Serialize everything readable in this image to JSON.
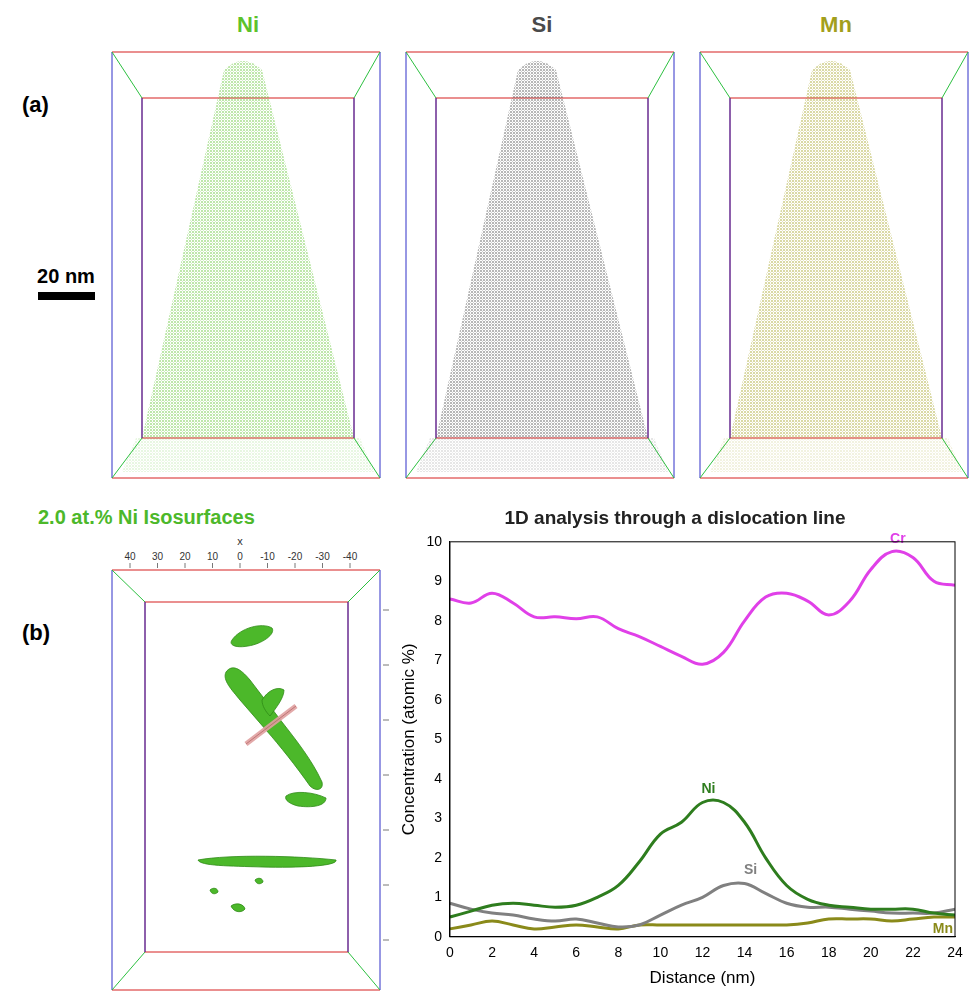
{
  "panels": {
    "a": {
      "label": "(a)",
      "scale_bar": "20 nm",
      "maps": [
        {
          "title": "Ni",
          "color": "#5cc22c"
        },
        {
          "title": "Si",
          "color": "#4a4a4a"
        },
        {
          "title": "Mn",
          "color": "#a39f1c"
        }
      ]
    },
    "b": {
      "label": "(b)",
      "isosurface": {
        "title": "2.0 at.% Ni Isosurfaces",
        "color": "#4cb82a",
        "axis_label": "x",
        "ticks": [
          40,
          30,
          20,
          10,
          0,
          -10,
          -20,
          -30,
          -40
        ]
      }
    }
  },
  "chart_data": {
    "type": "line",
    "title": "1D analysis through a dislocation line",
    "x_label": "Distance (nm)",
    "y_label": "Concentration (atomic %)",
    "x": [
      0,
      1,
      2,
      3,
      4,
      5,
      6,
      7,
      8,
      9,
      10,
      11,
      12,
      13,
      14,
      15,
      16,
      17,
      18,
      19,
      20,
      21,
      22,
      23,
      24
    ],
    "xlim": [
      0,
      24
    ],
    "xticks": [
      0,
      2,
      4,
      6,
      8,
      10,
      12,
      14,
      16,
      18,
      20,
      22,
      24
    ],
    "ylim": [
      0,
      10
    ],
    "yticks": [
      0,
      1,
      2,
      3,
      4,
      5,
      6,
      7,
      8,
      9,
      10
    ],
    "grid": false,
    "series": [
      {
        "name": "Cr",
        "color": "#e040e8",
        "values": [
          8.55,
          8.45,
          8.7,
          8.45,
          8.1,
          8.1,
          8.05,
          8.1,
          7.8,
          7.6,
          7.35,
          7.1,
          6.9,
          7.2,
          8.0,
          8.6,
          8.7,
          8.5,
          8.15,
          8.5,
          9.3,
          9.75,
          9.6,
          9.0,
          8.9
        ]
      },
      {
        "name": "Ni",
        "color": "#2e7d1e",
        "values": [
          0.5,
          0.65,
          0.8,
          0.85,
          0.8,
          0.75,
          0.8,
          1.0,
          1.3,
          1.9,
          2.6,
          2.9,
          3.4,
          3.4,
          2.9,
          2.0,
          1.3,
          0.95,
          0.8,
          0.75,
          0.7,
          0.7,
          0.7,
          0.6,
          0.55
        ]
      },
      {
        "name": "Si",
        "color": "#808080",
        "values": [
          0.85,
          0.7,
          0.6,
          0.55,
          0.45,
          0.4,
          0.45,
          0.35,
          0.25,
          0.3,
          0.55,
          0.8,
          1.0,
          1.3,
          1.35,
          1.1,
          0.85,
          0.75,
          0.75,
          0.7,
          0.65,
          0.6,
          0.6,
          0.6,
          0.7
        ]
      },
      {
        "name": "Mn",
        "color": "#8a8a1a",
        "values": [
          0.2,
          0.3,
          0.4,
          0.3,
          0.2,
          0.25,
          0.3,
          0.25,
          0.2,
          0.3,
          0.3,
          0.3,
          0.3,
          0.3,
          0.3,
          0.3,
          0.3,
          0.35,
          0.45,
          0.45,
          0.45,
          0.4,
          0.45,
          0.5,
          0.5
        ]
      }
    ]
  }
}
